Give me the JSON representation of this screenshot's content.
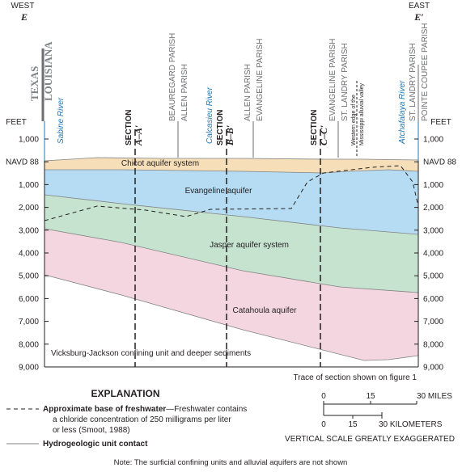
{
  "header": {
    "west": "WEST",
    "east": "EAST",
    "left_end": "E",
    "right_end": "E′"
  },
  "axis": {
    "unit_left": "FEET",
    "unit_right": "FEET",
    "ticks": [
      "1,000",
      "NAVD 88",
      "1,000",
      "2,000",
      "3,000",
      "4,000",
      "5,000",
      "6,000",
      "7,000",
      "8,000",
      "9,000"
    ]
  },
  "states": [
    "TEXAS",
    "LOUISIANA"
  ],
  "rivers": [
    "Sabine River",
    "Calcasieu River",
    "Atchafalaya River"
  ],
  "sections": [
    {
      "word": "SECTION",
      "name": "A–A′"
    },
    {
      "word": "SECTION",
      "name": "B–B′"
    },
    {
      "word": "SECTION",
      "name": "C–C′"
    }
  ],
  "parish_lines": [
    [
      "BEAUREGARD PARISH",
      "ALLEN PARISH"
    ],
    [
      "ALLEN PARISH",
      "EVANGELINE PARISH"
    ],
    [
      "EVANGELINE PARISH",
      "ST. LANDRY PARISH"
    ],
    [
      "ST. LANDRY PARISH",
      "POINTE COUPEE PARISH"
    ]
  ],
  "valley_edge": [
    "Western edge of the",
    "Mississippi alluvial valley"
  ],
  "units": [
    "Chicot aquifer system",
    "Evangeline aquifer",
    "Jasper aquifer system",
    "Catahoula aquifer",
    "Vicksburg-Jackson confining unit and deeper sediments"
  ],
  "trace_note": "Trace of section shown on figure 1",
  "explanation": {
    "title": "EXPLANATION",
    "freshwater_term": "Approximate base of freshwater",
    "freshwater_text": [
      "—Freshwater contains",
      "a chloride concentration of 250 milligrams per liter",
      "or less (Smoot, 1988)"
    ],
    "contact": "Hydrogeologic unit contact"
  },
  "scale": {
    "miles": [
      "0",
      "15",
      "30 MILES"
    ],
    "kilometers": [
      "0",
      "15",
      "30 KILOMETERS"
    ],
    "vertical": "VERTICAL SCALE GREATLY EXAGGERATED"
  },
  "note": "Note: The surficial confining units and alluvial aquifers are not shown"
}
